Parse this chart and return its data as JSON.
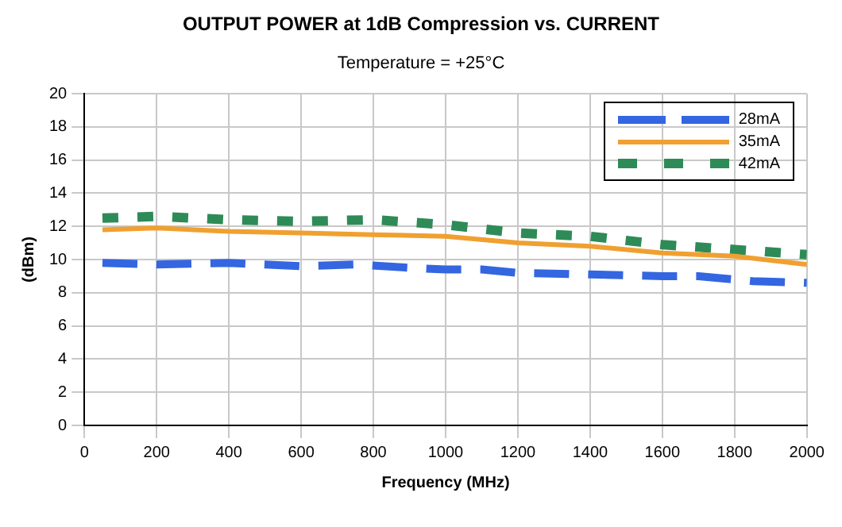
{
  "chart_data": {
    "type": "line",
    "title": "OUTPUT POWER at 1dB Compression vs. CURRENT",
    "subtitle": "Temperature = +25°C",
    "xlabel": "Frequency (MHz)",
    "ylabel": "(dBm)",
    "xlim": [
      0,
      2000
    ],
    "xticks": [
      0,
      200,
      400,
      600,
      800,
      1000,
      1200,
      1400,
      1600,
      1800,
      2000
    ],
    "ylim": [
      0,
      20
    ],
    "yticks": [
      0,
      2,
      4,
      6,
      8,
      10,
      12,
      14,
      16,
      18,
      20
    ],
    "grid": true,
    "legend": "top right",
    "series": [
      {
        "name": "28mA",
        "color": "#3366e0",
        "line_style": "dashed",
        "x": [
          50,
          200,
          400,
          600,
          750,
          900,
          1000,
          1100,
          1200,
          1400,
          1600,
          1700,
          1850,
          2000
        ],
        "values": [
          9.8,
          9.7,
          9.8,
          9.6,
          9.7,
          9.5,
          9.4,
          9.4,
          9.2,
          9.1,
          9.0,
          9.0,
          8.7,
          8.6
        ]
      },
      {
        "name": "35mA",
        "color": "#f0a030",
        "line_style": "solid",
        "x": [
          50,
          200,
          400,
          600,
          800,
          1000,
          1200,
          1400,
          1600,
          1800,
          2000
        ],
        "values": [
          11.8,
          11.9,
          11.7,
          11.6,
          11.5,
          11.4,
          11.0,
          10.8,
          10.4,
          10.2,
          9.7
        ]
      },
      {
        "name": "42mA",
        "color": "#2e8b57",
        "line_style": "dotted",
        "x": [
          50,
          200,
          400,
          600,
          800,
          1000,
          1200,
          1400,
          1600,
          1800,
          2000
        ],
        "values": [
          12.5,
          12.6,
          12.4,
          12.3,
          12.4,
          12.1,
          11.6,
          11.4,
          10.9,
          10.6,
          10.3
        ]
      }
    ]
  }
}
